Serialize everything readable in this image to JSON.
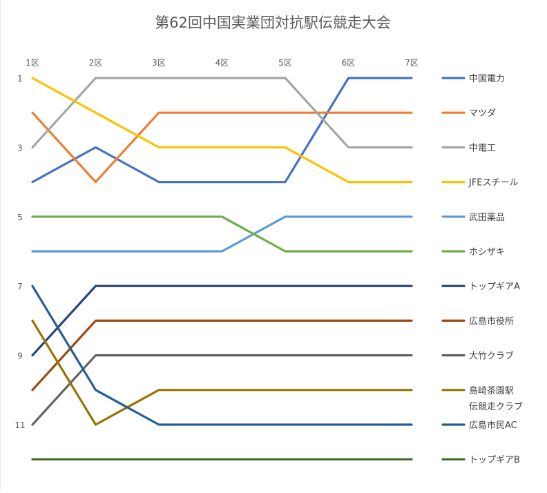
{
  "chart_data": {
    "type": "line",
    "title": "第62回中国実業団対抗駅伝競走大会",
    "xlabel": "",
    "ylabel": "",
    "categories": [
      "1区",
      "2区",
      "3区",
      "4区",
      "5区",
      "6区",
      "7区"
    ],
    "y_ticks": [
      "1",
      "3",
      "5",
      "7",
      "9",
      "11"
    ],
    "y_tick_values": [
      1,
      3,
      5,
      7,
      9,
      11
    ],
    "ylim": [
      1,
      12
    ],
    "y_reversed": true,
    "x_axis_position": "top",
    "grid": false,
    "legend_position": "right",
    "series": [
      {
        "name": "中国電力",
        "color": "#4472C4",
        "values": [
          4,
          3,
          4,
          4,
          4,
          1,
          1
        ]
      },
      {
        "name": "マツダ",
        "color": "#ED7D31",
        "values": [
          2,
          4,
          2,
          2,
          2,
          2,
          2
        ]
      },
      {
        "name": "中電工",
        "color": "#A5A5A5",
        "values": [
          3,
          1,
          1,
          1,
          1,
          3,
          3
        ]
      },
      {
        "name": "JFEスチール",
        "color": "#FFC000",
        "values": [
          1,
          2,
          3,
          3,
          3,
          4,
          4
        ]
      },
      {
        "name": "武田薬品",
        "color": "#5B9BD5",
        "values": [
          6,
          6,
          6,
          6,
          5,
          5,
          5
        ]
      },
      {
        "name": "ホシザキ",
        "color": "#70AD47",
        "values": [
          5,
          5,
          5,
          5,
          6,
          6,
          6
        ]
      },
      {
        "name": "トップギアA",
        "color": "#264478",
        "values": [
          9,
          7,
          7,
          7,
          7,
          7,
          7
        ]
      },
      {
        "name": "広島市役所",
        "color": "#9E480E",
        "values": [
          10,
          8,
          8,
          8,
          8,
          8,
          8
        ]
      },
      {
        "name": "大竹クラブ",
        "color": "#636363",
        "values": [
          11,
          9,
          9,
          9,
          9,
          9,
          9
        ]
      },
      {
        "name": "島崎茶園駅伝競走クラブ",
        "legend_lines": [
          "島崎茶園駅",
          "伝競走クラブ"
        ],
        "color": "#997300",
        "values": [
          8,
          11,
          10,
          10,
          10,
          10,
          10
        ]
      },
      {
        "name": "広島市民AC",
        "color": "#255E91",
        "values": [
          7,
          10,
          11,
          11,
          11,
          11,
          11
        ]
      },
      {
        "name": "トップギアB",
        "color": "#43682B",
        "values": [
          12,
          12,
          12,
          12,
          12,
          12,
          12
        ]
      }
    ]
  }
}
